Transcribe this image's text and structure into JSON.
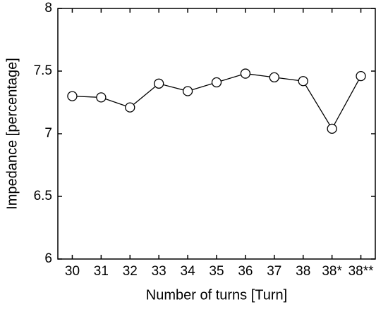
{
  "chart_data": {
    "type": "line",
    "x_label": "Number of turns [Turn]",
    "y_label": "Impedance [percentage]",
    "categories": [
      "30",
      "31",
      "32",
      "33",
      "34",
      "35",
      "36",
      "37",
      "38",
      "38*",
      "38**"
    ],
    "values": [
      7.3,
      7.29,
      7.21,
      7.4,
      7.34,
      7.41,
      7.48,
      7.45,
      7.42,
      7.04,
      7.46
    ],
    "color": "#000000",
    "ylim": [
      6,
      8
    ],
    "yticks": [
      6,
      6.5,
      7,
      7.5,
      8
    ],
    "grid": false
  }
}
